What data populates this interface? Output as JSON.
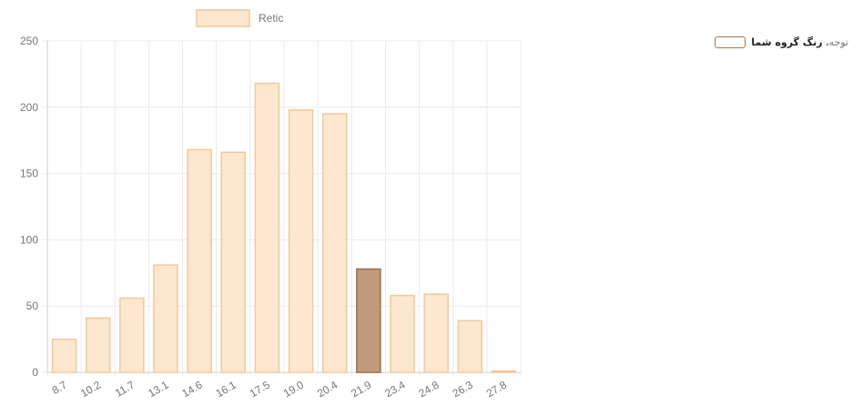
{
  "chart_data": {
    "type": "bar",
    "legend": {
      "label": "Retic",
      "position": "top"
    },
    "categories": [
      "8.7",
      "10.2",
      "11.7",
      "13.1",
      "14.6",
      "16.1",
      "17.5",
      "19.0",
      "20.4",
      "21.9",
      "23.4",
      "24.8",
      "26.3",
      "27.8"
    ],
    "series": [
      {
        "name": "Retic",
        "values": [
          25,
          41,
          56,
          81,
          168,
          166,
          218,
          198,
          195,
          78,
          58,
          59,
          39,
          1
        ]
      }
    ],
    "highlight_index": 9,
    "ylim": [
      0,
      250
    ],
    "yticks": [
      "0",
      "50",
      "100",
      "150",
      "200",
      "250"
    ],
    "grid": true,
    "colors": {
      "bar_fill": "#fde8cf",
      "bar_border": "#f5c79a",
      "highlight_fill": "#c19a7c",
      "highlight_border": "#9b6e4c",
      "grid": "#ebebeb"
    }
  },
  "note": {
    "prefix": "توجه",
    "text": "رنگ گروه شما",
    "swatch_color": "#a0764f"
  }
}
